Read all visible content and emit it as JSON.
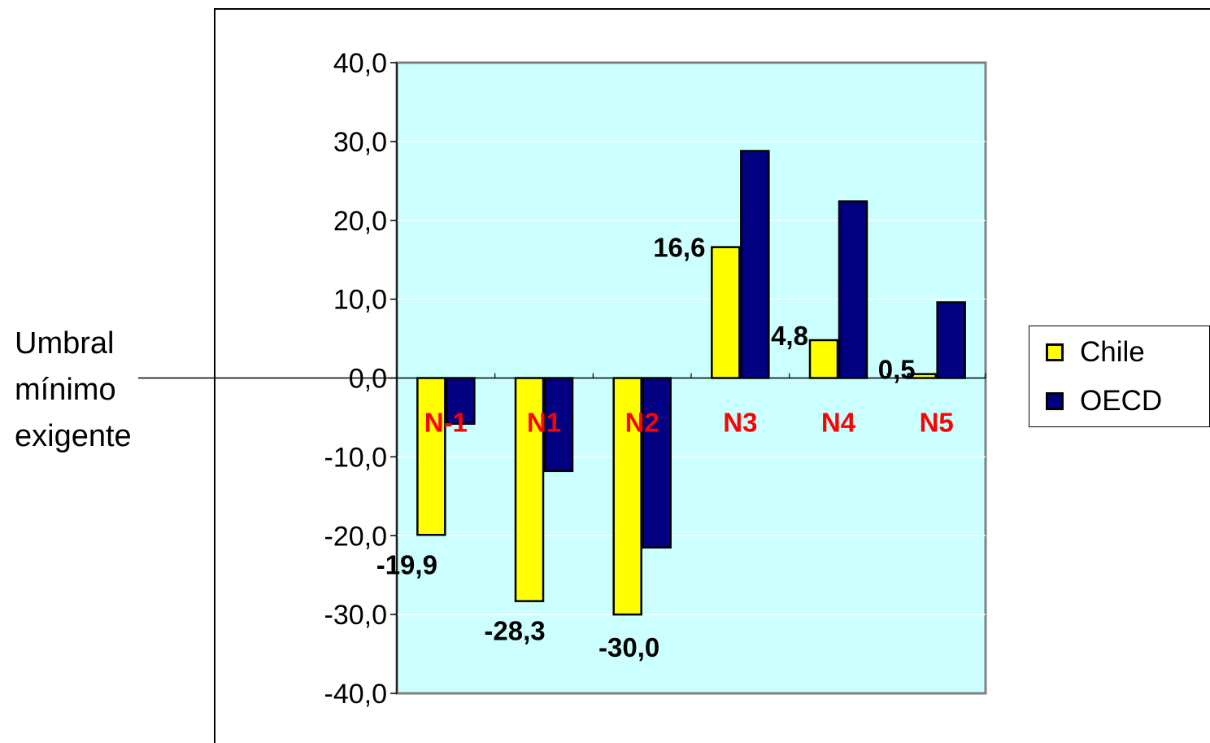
{
  "annotation": {
    "lines": [
      "Umbral",
      "mínimo",
      "exigente"
    ]
  },
  "colors": {
    "plot_background": "#ccffff",
    "chile": "#ffff00",
    "oecd": "#000080",
    "category_label": "#ff0000",
    "grid": "#ffffff"
  },
  "chart_data": {
    "type": "bar",
    "categories": [
      "N-1",
      "N1",
      "N2",
      "N3",
      "N4",
      "N5"
    ],
    "series": [
      {
        "name": "Chile",
        "values": [
          -19.9,
          -28.3,
          -30.0,
          16.6,
          4.8,
          0.5
        ],
        "data_labels": [
          "-19,9",
          "-28,3",
          "-30,0",
          "16,6",
          "4,8",
          "0,5"
        ]
      },
      {
        "name": "OECD",
        "values": [
          -5.8,
          -11.8,
          -21.5,
          28.8,
          22.4,
          9.6
        ]
      }
    ],
    "ylim": [
      -40,
      40
    ],
    "yticks": [
      "-40,0",
      "-30,0",
      "-20,0",
      "-10,0",
      "0,0",
      "10,0",
      "20,0",
      "30,0",
      "40,0"
    ],
    "ytick_values": [
      -40,
      -30,
      -20,
      -10,
      0,
      10,
      20,
      30,
      40
    ],
    "grid": true,
    "legend": "right"
  }
}
